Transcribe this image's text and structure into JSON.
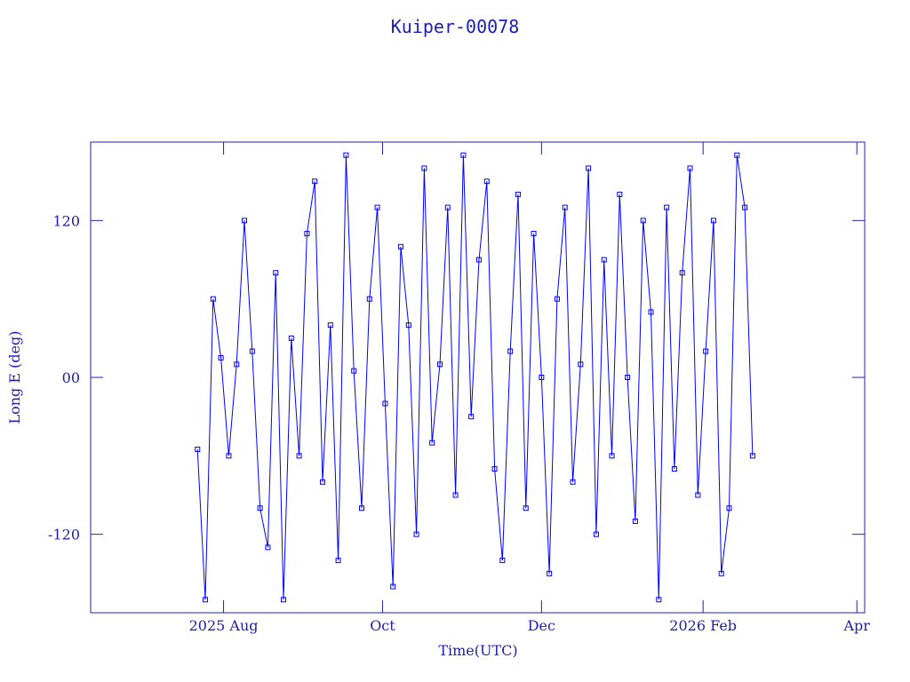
{
  "chart_data": {
    "type": "line",
    "title": "Kuiper-00078",
    "xlabel": "Time(UTC)",
    "ylabel": "Long E (deg)",
    "color": "#0000ff",
    "axis_color": "#2020b0",
    "xlim": [
      "2025-06-11",
      "2026-04-04"
    ],
    "xticks": [
      {
        "value": "2025-08-01",
        "label": "2025 Aug"
      },
      {
        "value": "2025-10-01",
        "label": "Oct"
      },
      {
        "value": "2025-12-01",
        "label": "Dec"
      },
      {
        "value": "2026-02-01",
        "label": "2026 Feb"
      },
      {
        "value": "2026-04-01",
        "label": "Apr"
      }
    ],
    "ylim": [
      -180,
      180
    ],
    "yticks": [
      -120,
      {
        "value": 0,
        "label": "00"
      },
      120
    ],
    "x": [
      "2025-07-22",
      "2025-07-25",
      "2025-07-28",
      "2025-07-31",
      "2025-08-03",
      "2025-08-06",
      "2025-08-09",
      "2025-08-12",
      "2025-08-15",
      "2025-08-18",
      "2025-08-21",
      "2025-08-24",
      "2025-08-27",
      "2025-08-30",
      "2025-09-02",
      "2025-09-05",
      "2025-09-08",
      "2025-09-11",
      "2025-09-14",
      "2025-09-17",
      "2025-09-20",
      "2025-09-23",
      "2025-09-26",
      "2025-09-29",
      "2025-10-02",
      "2025-10-05",
      "2025-10-08",
      "2025-10-11",
      "2025-10-14",
      "2025-10-17",
      "2025-10-20",
      "2025-10-23",
      "2025-10-26",
      "2025-10-29",
      "2025-11-01",
      "2025-11-04",
      "2025-11-07",
      "2025-11-10",
      "2025-11-13",
      "2025-11-16",
      "2025-11-19",
      "2025-11-22",
      "2025-11-25",
      "2025-11-28",
      "2025-12-01",
      "2025-12-04",
      "2025-12-07",
      "2025-12-10",
      "2025-12-13",
      "2025-12-16",
      "2025-12-19",
      "2025-12-22",
      "2025-12-25",
      "2025-12-28",
      "2025-12-31",
      "2026-01-03",
      "2026-01-06",
      "2026-01-09",
      "2026-01-12",
      "2026-01-15",
      "2026-01-18",
      "2026-01-21",
      "2026-01-24",
      "2026-01-27",
      "2026-01-30",
      "2026-02-02",
      "2026-02-05",
      "2026-02-08",
      "2026-02-11",
      "2026-02-14",
      "2026-02-17",
      "2026-02-20"
    ],
    "values": [
      -55,
      -170,
      60,
      15,
      -60,
      10,
      120,
      20,
      -100,
      -130,
      80,
      -170,
      30,
      -60,
      110,
      150,
      -80,
      40,
      -140,
      170,
      5,
      -100,
      60,
      130,
      -20,
      -160,
      100,
      40,
      -120,
      160,
      -50,
      10,
      130,
      -90,
      170,
      -30,
      90,
      150,
      -70,
      -140,
      20,
      140,
      -100,
      110,
      0,
      -150,
      60,
      130,
      -80,
      10,
      160,
      -120,
      90,
      -60,
      140,
      0,
      -110,
      120,
      50,
      -170,
      130,
      -70,
      80,
      160,
      -90,
      20,
      120,
      -150,
      -100,
      170,
      130,
      -60
    ]
  }
}
